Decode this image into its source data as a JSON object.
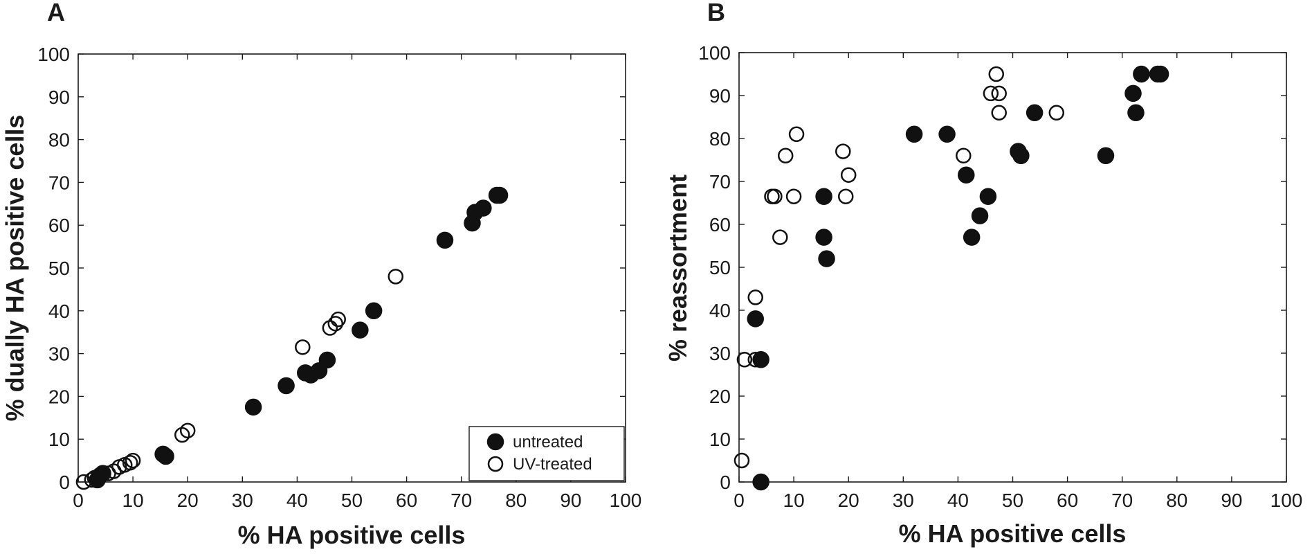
{
  "chart_data": [
    {
      "type": "scatter",
      "panel_label": "A",
      "xlabel": "% HA positive cells",
      "ylabel": "% dually HA positive cells",
      "xlim": [
        0,
        100
      ],
      "ylim": [
        0,
        100
      ],
      "xticks": [
        0,
        10,
        20,
        30,
        40,
        50,
        60,
        70,
        80,
        90,
        100
      ],
      "yticks": [
        0,
        10,
        20,
        30,
        40,
        50,
        60,
        70,
        80,
        90,
        100
      ],
      "grid": false,
      "legend_position": "bottom-right",
      "series": [
        {
          "name": "untreated",
          "marker": "filled-circle",
          "points": [
            [
              3.5,
              0.5
            ],
            [
              4,
              1.5
            ],
            [
              4.5,
              2
            ],
            [
              15.5,
              6.5
            ],
            [
              16,
              6
            ],
            [
              32,
              17.5
            ],
            [
              38,
              22.5
            ],
            [
              41.5,
              25.5
            ],
            [
              42.5,
              25
            ],
            [
              44,
              26
            ],
            [
              45.5,
              28.5
            ],
            [
              51.5,
              35.5
            ],
            [
              54,
              40
            ],
            [
              67,
              56.5
            ],
            [
              72,
              60.5
            ],
            [
              72.5,
              63
            ],
            [
              74,
              64
            ],
            [
              76.5,
              67
            ],
            [
              77,
              67
            ]
          ]
        },
        {
          "name": "UV-treated",
          "marker": "open-circle",
          "points": [
            [
              1,
              0
            ],
            [
              2.5,
              0.5
            ],
            [
              3,
              1
            ],
            [
              5.5,
              2
            ],
            [
              6.5,
              2.5
            ],
            [
              7.5,
              3.5
            ],
            [
              8.5,
              4
            ],
            [
              9.5,
              4.5
            ],
            [
              10,
              5
            ],
            [
              19,
              11
            ],
            [
              20,
              12
            ],
            [
              41,
              31.5
            ],
            [
              46,
              36
            ],
            [
              47,
              37
            ],
            [
              47.5,
              38
            ],
            [
              58,
              48
            ]
          ]
        }
      ]
    },
    {
      "type": "scatter",
      "panel_label": "B",
      "xlabel": "% HA positive cells",
      "ylabel": "% reassortment",
      "xlim": [
        0,
        100
      ],
      "ylim": [
        0,
        100
      ],
      "xticks": [
        0,
        10,
        20,
        30,
        40,
        50,
        60,
        70,
        80,
        90,
        100
      ],
      "yticks": [
        0,
        10,
        20,
        30,
        40,
        50,
        60,
        70,
        80,
        90,
        100
      ],
      "grid": false,
      "legend_position": "none",
      "series": [
        {
          "name": "untreated",
          "marker": "filled-circle",
          "points": [
            [
              4,
              0
            ],
            [
              3,
              38
            ],
            [
              4,
              28.5
            ],
            [
              15.5,
              66.5
            ],
            [
              15.5,
              57
            ],
            [
              16,
              52
            ],
            [
              32,
              81
            ],
            [
              38,
              81
            ],
            [
              41.5,
              71.5
            ],
            [
              42.5,
              57
            ],
            [
              44,
              62
            ],
            [
              45.5,
              66.5
            ],
            [
              51,
              77
            ],
            [
              51.5,
              76
            ],
            [
              54,
              86
            ],
            [
              67,
              76
            ],
            [
              72,
              90.5
            ],
            [
              72.5,
              86
            ],
            [
              73.5,
              95
            ],
            [
              76.5,
              95
            ],
            [
              77,
              95
            ]
          ]
        },
        {
          "name": "UV-treated",
          "marker": "open-circle",
          "points": [
            [
              0.5,
              5
            ],
            [
              1,
              28.5
            ],
            [
              3,
              28.5
            ],
            [
              3,
              43
            ],
            [
              6,
              66.5
            ],
            [
              6.5,
              66.5
            ],
            [
              7.5,
              57
            ],
            [
              8.5,
              76
            ],
            [
              10,
              66.5
            ],
            [
              10.5,
              81
            ],
            [
              19,
              77
            ],
            [
              19.5,
              66.5
            ],
            [
              20,
              71.5
            ],
            [
              41,
              76
            ],
            [
              46,
              90.5
            ],
            [
              47,
              95
            ],
            [
              47.5,
              90.5
            ],
            [
              47.5,
              86
            ],
            [
              58,
              86
            ]
          ]
        }
      ]
    }
  ]
}
